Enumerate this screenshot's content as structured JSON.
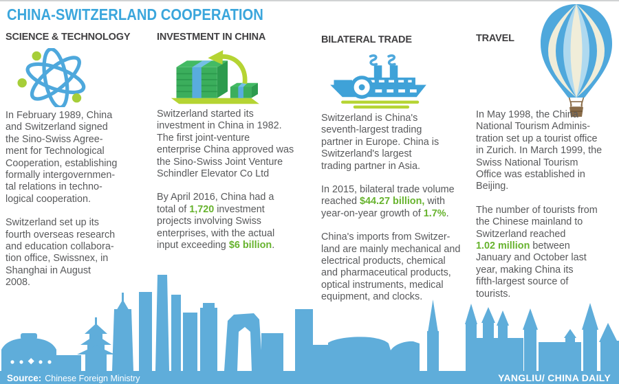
{
  "title": "CHINA-SWITZERLAND COOPERATION",
  "columns": [
    {
      "header": "SCIENCE & TECHNOLOGY",
      "icon": "atom-icon",
      "paragraphs": [
        [
          {
            "text": "In February 1989, China\nand Switzerland signed\nthe Sino-Swiss Agree-\nment for Technological\nCooperation, establishing\nformally intergovernmen-\ntal relations in techno-\nlogical cooperation."
          }
        ],
        [
          {
            "text": "Switzerland set up its\nfourth overseas research\nand education collabora-\ntion office, Swissnex, in\nShanghai in August\n2008."
          }
        ]
      ]
    },
    {
      "header": "INVESTMENT IN CHINA",
      "icon": "money-stack-icon",
      "paragraphs": [
        [
          {
            "text": "Switzerland started its\ninvestment in China in 1982.\nThe first joint-venture\nenterprise China approved was\nthe Sino-Swiss Joint Venture\nSchindler Elevator Co Ltd"
          }
        ],
        [
          {
            "text": "By April 2016, China had a\ntotal of "
          },
          {
            "text": "1,720",
            "highlight": true
          },
          {
            "text": " investment\nprojects involving Swiss\nenterprises, with the actual\ninput exceeding "
          },
          {
            "text": "$6 billion",
            "highlight": true
          },
          {
            "text": "."
          }
        ]
      ]
    },
    {
      "header": "BILATERAL TRADE",
      "icon": "steamship-icon",
      "paragraphs": [
        [
          {
            "text": "Switzerland is China's\nseventh-largest trading\npartner in Europe. China is\nSwitzerland's largest\ntrading partner in Asia."
          }
        ],
        [
          {
            "text": "In 2015, bilateral trade volume\nreached "
          },
          {
            "text": "$44.27 billion,",
            "highlight": true
          },
          {
            "text": " with\nyear-on-year growth of "
          },
          {
            "text": "1.7%",
            "highlight": true
          },
          {
            "text": "."
          }
        ],
        [
          {
            "text": "China's imports from Switzer-\nland are mainly mechanical and\nelectrical products, chemical\nand pharmaceutical products,\noptical instruments, medical\nequipment, and clocks."
          }
        ]
      ]
    },
    {
      "header": "TRAVEL",
      "icon": "hot-air-balloon-icon",
      "paragraphs": [
        [
          {
            "text": "In May 1998, the China\nNational Tourism Adminis-\ntration set up a tourist office\nin Zurich. In March 1999, the\nSwiss National Tourism\nOffice was established in\nBeijing."
          }
        ],
        [
          {
            "text": "The number of tourists from\nthe Chinese mainland to\nSwitzerland reached\n"
          },
          {
            "text": "1.02 million",
            "highlight": true
          },
          {
            "text": " between\nJanuary and October last\nyear, making China its\nfifth-largest source of\ntourists."
          }
        ]
      ]
    }
  ],
  "footer": {
    "source_label": "Source:",
    "source_value": "Chinese Foreign Ministry",
    "credit": "YANGLIU/ CHINA DAILY"
  },
  "colors": {
    "title_blue": "#3BA6DC",
    "header_dark": "#414042",
    "body_gray": "#58595B",
    "highlight_green": "#67B32E",
    "skyline_blue": "#5FADDA",
    "icon_blue": "#4EA8DC",
    "leaf_green": "#B5D433",
    "money_green": "#3BAE5C",
    "balloon_cream": "#F0EDD9",
    "basket_brown": "#8A6C49"
  }
}
